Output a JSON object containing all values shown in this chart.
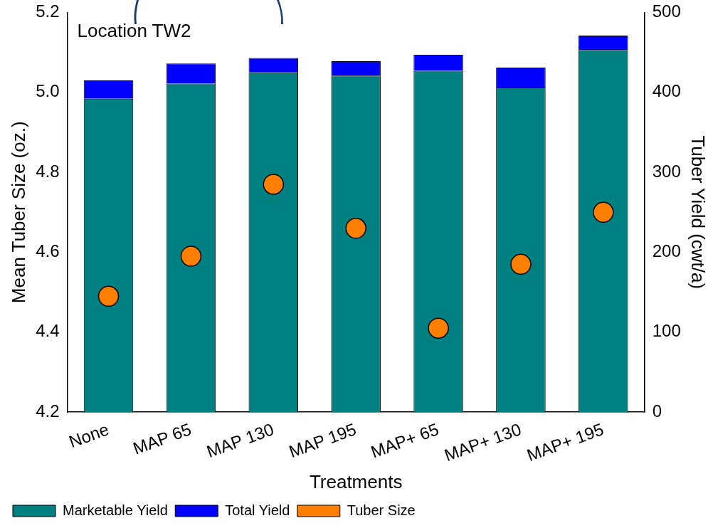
{
  "chart_data": {
    "type": "bar",
    "stacked": true,
    "legend": "bottom left",
    "xlabel": "Treatments",
    "ylabel": "Mean Tuber Size (oz.)",
    "y2label": "Tuber Yield (cwt/a)",
    "annotations": [
      "Location TW2"
    ],
    "categories": [
      "None",
      "MAP 65",
      "MAP 130",
      "MAP 195",
      "MAP+ 65",
      "MAP+ 130",
      "MAP+ 195"
    ],
    "series": [
      {
        "name": "Marketable Yield",
        "axis": "y2",
        "color": "#008080",
        "values": [
          392,
          411,
          425,
          421,
          427,
          406,
          453
        ]
      },
      {
        "name": "Total Yield",
        "axis": "y2",
        "color": "#0000ff",
        "values": [
          23,
          25,
          18,
          18,
          20,
          25,
          18
        ]
      },
      {
        "name": "Tuber Size",
        "type": "scatter",
        "axis": "y",
        "marker": "circle",
        "color": "#ff8000",
        "values": [
          4.49,
          4.59,
          4.77,
          4.66,
          4.41,
          4.57,
          4.7
        ]
      }
    ],
    "ylim": [
      4.2,
      5.2
    ],
    "yticks": [
      4.2,
      4.4,
      4.6,
      4.8,
      {
        "value": 5,
        "label": "5.0"
      },
      5.2
    ],
    "y2lim": [
      0,
      500
    ],
    "y2ticks": [
      0,
      100,
      200,
      300,
      400,
      500
    ]
  }
}
